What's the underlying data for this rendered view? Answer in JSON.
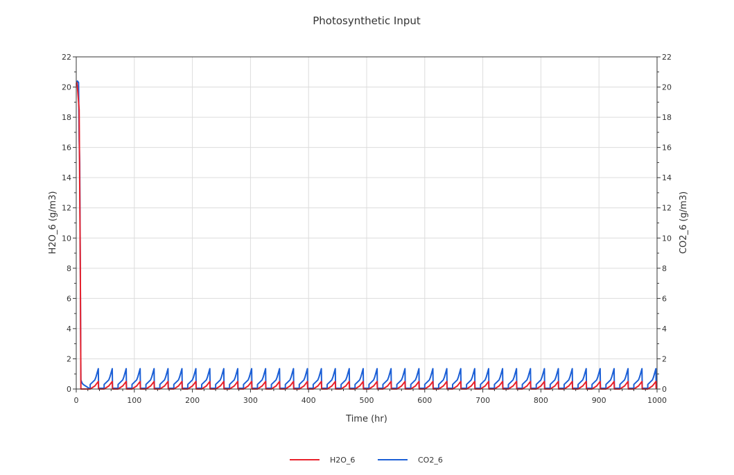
{
  "chart_data": {
    "type": "line",
    "title": "Photosynthetic Input",
    "xlabel": "Time (hr)",
    "ylabel_left": "H2O_6 (g/m3)",
    "ylabel_right": "CO2_6 (g/m3)",
    "xlim": [
      0,
      1000
    ],
    "ylim": [
      0,
      22
    ],
    "x_ticks": [
      0,
      100,
      200,
      300,
      400,
      500,
      600,
      700,
      800,
      900,
      1000
    ],
    "y_ticks": [
      0,
      2,
      4,
      6,
      8,
      10,
      12,
      14,
      16,
      18,
      20,
      22
    ],
    "grid": true,
    "legend_position": "bottom",
    "pattern": {
      "period_hr": 24,
      "first_cycle_hr": 24,
      "initial_h2o": [
        [
          0,
          20.2
        ],
        [
          1,
          20.3
        ],
        [
          2,
          20.0
        ],
        [
          4,
          19.0
        ],
        [
          5,
          18.5
        ],
        [
          7,
          8.0
        ],
        [
          8,
          0
        ],
        [
          24,
          0
        ]
      ],
      "initial_co2": [
        [
          0,
          20.1
        ],
        [
          2,
          20.4
        ],
        [
          4,
          20.3
        ],
        [
          5,
          16.5
        ],
        [
          6,
          15.0
        ],
        [
          7,
          8.0
        ],
        [
          8,
          0.6
        ],
        [
          10,
          0.4
        ],
        [
          12,
          0.3
        ],
        [
          24,
          0
        ]
      ],
      "h2o_cycle": [
        [
          0,
          0
        ],
        [
          8,
          0.2
        ],
        [
          10,
          0.3
        ],
        [
          14,
          0.5
        ],
        [
          14.5,
          0
        ],
        [
          24,
          0
        ]
      ],
      "co2_cycle": [
        [
          0,
          0.3
        ],
        [
          8,
          0.6
        ],
        [
          10,
          0.8
        ],
        [
          14,
          1.35
        ],
        [
          14.5,
          0.05
        ],
        [
          24,
          0.05
        ]
      ]
    },
    "series": [
      {
        "name": "H2O_6",
        "color": "#e8212b",
        "axis": "left"
      },
      {
        "name": "CO2_6",
        "color": "#1b5fd6",
        "axis": "right"
      }
    ]
  }
}
